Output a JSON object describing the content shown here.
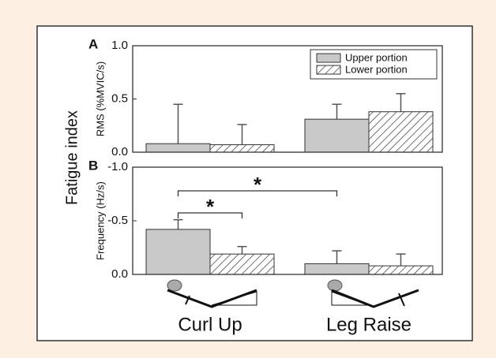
{
  "figure": {
    "ylabel": "Fatigue index"
  },
  "chart_data": [
    {
      "type": "bar",
      "panel_label": "A",
      "ylabel": "RMS (%MVIC/s)",
      "ylim": [
        0,
        1
      ],
      "yticks": [
        {
          "value": 0,
          "label": "0.0"
        },
        0.5,
        {
          "value": 1,
          "label": "1.0"
        }
      ],
      "legend": "upper right",
      "hatch_series": 1,
      "series": [
        {
          "name": "Upper portion",
          "color": "#c8c8c8",
          "values": [
            0.08,
            0.31
          ],
          "errors": [
            0.37,
            0.14
          ]
        },
        {
          "name": "Lower portion",
          "color": "#ffffff",
          "values": [
            0.07,
            0.38
          ],
          "errors": [
            0.19,
            0.17
          ]
        }
      ]
    },
    {
      "type": "bar",
      "panel_label": "B",
      "ylabel": "Frequency (Hz/s)",
      "ylim": [
        0,
        -1
      ],
      "yticks": [
        {
          "value": 0,
          "label": "0.0"
        },
        -0.5,
        {
          "value": -1,
          "label": "-1.0"
        }
      ],
      "categories": [
        "Curl Up",
        "Leg Raise"
      ],
      "hatch_series": 1,
      "annotations": [
        "*",
        "*"
      ],
      "series": [
        {
          "name": "Upper portion",
          "color": "#c8c8c8",
          "values": [
            -0.42,
            -0.1
          ],
          "errors": [
            0.09,
            0.12
          ]
        },
        {
          "name": "Lower portion",
          "color": "#ffffff",
          "values": [
            -0.19,
            -0.08
          ],
          "errors": [
            0.07,
            0.11
          ]
        }
      ]
    }
  ]
}
